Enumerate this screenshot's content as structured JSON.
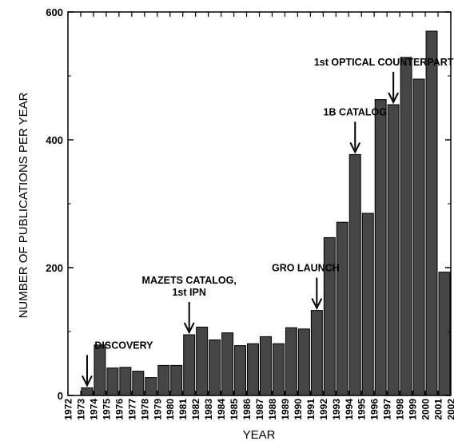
{
  "chart_data": {
    "type": "bar",
    "title": "",
    "xlabel": "YEAR",
    "ylabel": "NUMBER OF PUBLICATIONS PER YEAR",
    "ylim": [
      0,
      600
    ],
    "yticks": [
      "0",
      "200",
      "400",
      "600"
    ],
    "xticks": [
      "1972",
      "1973",
      "1974",
      "1975",
      "1976",
      "1977",
      "1978",
      "1979",
      "1980",
      "1981",
      "1982",
      "1983",
      "1984",
      "1985",
      "1986",
      "1987",
      "1988",
      "1989",
      "1990",
      "1991",
      "1992",
      "1993",
      "1994",
      "1995",
      "1996",
      "1997",
      "1998",
      "1999",
      "2000",
      "2001",
      "2002"
    ],
    "categories": [
      "1973",
      "1974",
      "1975",
      "1976",
      "1977",
      "1978",
      "1979",
      "1980",
      "1981",
      "1982",
      "1983",
      "1984",
      "1985",
      "1986",
      "1987",
      "1988",
      "1989",
      "1990",
      "1991",
      "1992",
      "1993",
      "1994",
      "1995",
      "1996",
      "1997",
      "1998",
      "1999",
      "2000",
      "2001"
    ],
    "values": [
      12,
      79,
      43,
      44,
      38,
      28,
      47,
      47,
      95,
      107,
      87,
      98,
      78,
      81,
      92,
      81,
      106,
      104,
      133,
      247,
      271,
      377,
      285,
      463,
      455,
      529,
      495,
      570,
      193
    ],
    "grid": false,
    "bar_color": "#454545",
    "annotations": [
      {
        "year": "1973",
        "lines": [
          "DISCOVERY"
        ]
      },
      {
        "year": "1981",
        "lines": [
          "MAZETS CATALOG,",
          "1st IPN"
        ]
      },
      {
        "year": "1991",
        "lines": [
          "GRO LAUNCH"
        ]
      },
      {
        "year": "1994",
        "lines": [
          "1B CATALOG"
        ]
      },
      {
        "year": "1997",
        "lines": [
          "1st OPTICAL COUNTERPART"
        ]
      }
    ]
  }
}
